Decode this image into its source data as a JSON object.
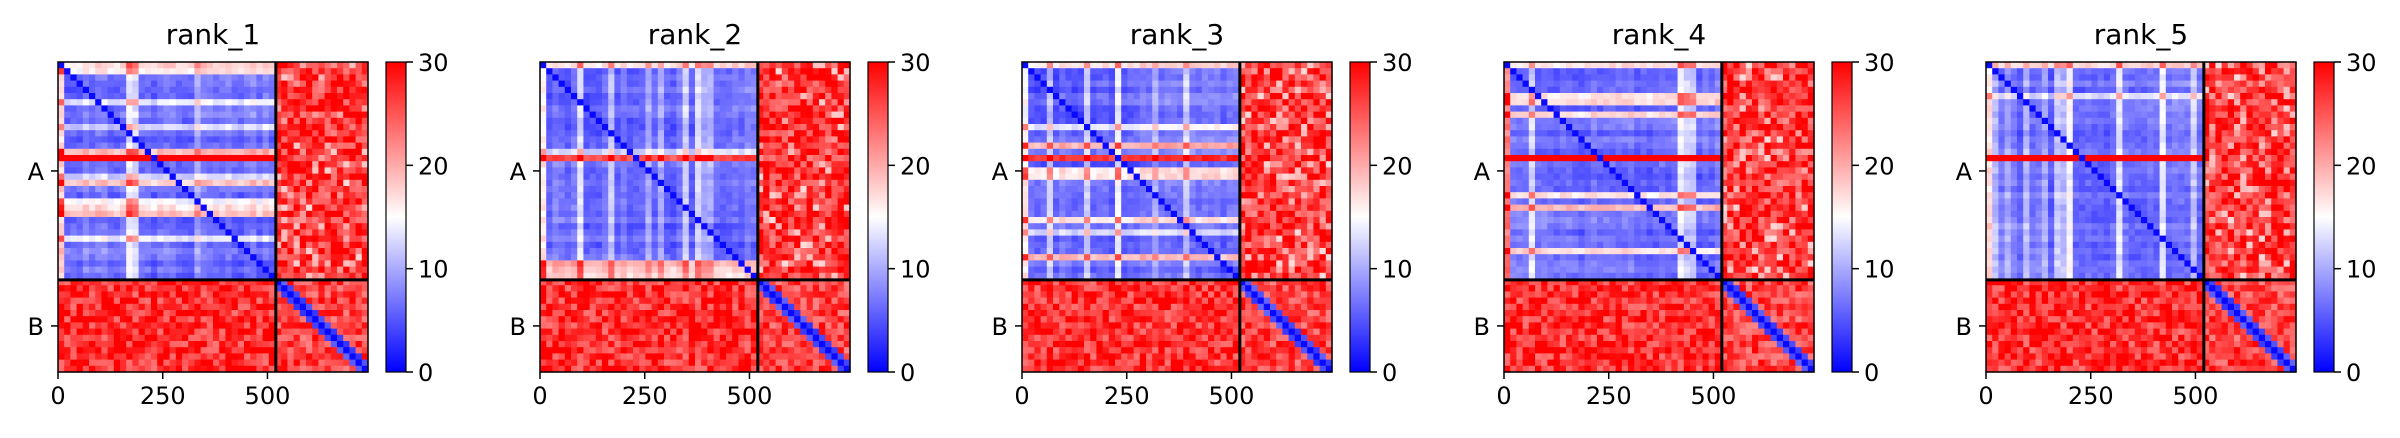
{
  "figure": {
    "type": "heatmap",
    "panel_count": 5
  },
  "chart_data": [
    {
      "type": "heatmap",
      "title": "rank_1",
      "chains": [
        {
          "label": "A",
          "start": 0,
          "end": 520
        },
        {
          "label": "B",
          "start": 520,
          "end": 740
        }
      ],
      "xticks": [
        0,
        250,
        500
      ],
      "xlim": [
        0,
        740
      ],
      "colorbar": {
        "ticks": [
          0,
          10,
          20,
          30
        ],
        "range": [
          0,
          30
        ],
        "colormap": [
          "#0000ff",
          "#ffffff",
          "#ff0000"
        ]
      },
      "grid": false,
      "legend": "none"
    },
    {
      "type": "heatmap",
      "title": "rank_2",
      "chains": [
        {
          "label": "A",
          "start": 0,
          "end": 520
        },
        {
          "label": "B",
          "start": 520,
          "end": 740
        }
      ],
      "xticks": [
        0,
        250,
        500
      ],
      "xlim": [
        0,
        740
      ],
      "colorbar": {
        "ticks": [
          0,
          10,
          20,
          30
        ],
        "range": [
          0,
          30
        ],
        "colormap": [
          "#0000ff",
          "#ffffff",
          "#ff0000"
        ]
      },
      "grid": false,
      "legend": "none"
    },
    {
      "type": "heatmap",
      "title": "rank_3",
      "chains": [
        {
          "label": "A",
          "start": 0,
          "end": 520
        },
        {
          "label": "B",
          "start": 520,
          "end": 740
        }
      ],
      "xticks": [
        0,
        250,
        500
      ],
      "xlim": [
        0,
        740
      ],
      "colorbar": {
        "ticks": [
          0,
          10,
          20,
          30
        ],
        "range": [
          0,
          30
        ],
        "colormap": [
          "#0000ff",
          "#ffffff",
          "#ff0000"
        ]
      },
      "grid": false,
      "legend": "none"
    },
    {
      "type": "heatmap",
      "title": "rank_4",
      "chains": [
        {
          "label": "A",
          "start": 0,
          "end": 520
        },
        {
          "label": "B",
          "start": 520,
          "end": 740
        }
      ],
      "xticks": [
        0,
        250,
        500
      ],
      "xlim": [
        0,
        740
      ],
      "colorbar": {
        "ticks": [
          0,
          10,
          20,
          30
        ],
        "range": [
          0,
          30
        ],
        "colormap": [
          "#0000ff",
          "#ffffff",
          "#ff0000"
        ]
      },
      "grid": false,
      "legend": "none"
    },
    {
      "type": "heatmap",
      "title": "rank_5",
      "chains": [
        {
          "label": "A",
          "start": 0,
          "end": 520
        },
        {
          "label": "B",
          "start": 520,
          "end": 740
        }
      ],
      "xticks": [
        0,
        250,
        500
      ],
      "xlim": [
        0,
        740
      ],
      "colorbar": {
        "ticks": [
          0,
          10,
          20,
          30
        ],
        "range": [
          0,
          30
        ],
        "colormap": [
          "#0000ff",
          "#ffffff",
          "#ff0000"
        ]
      },
      "grid": false,
      "legend": "none"
    }
  ]
}
